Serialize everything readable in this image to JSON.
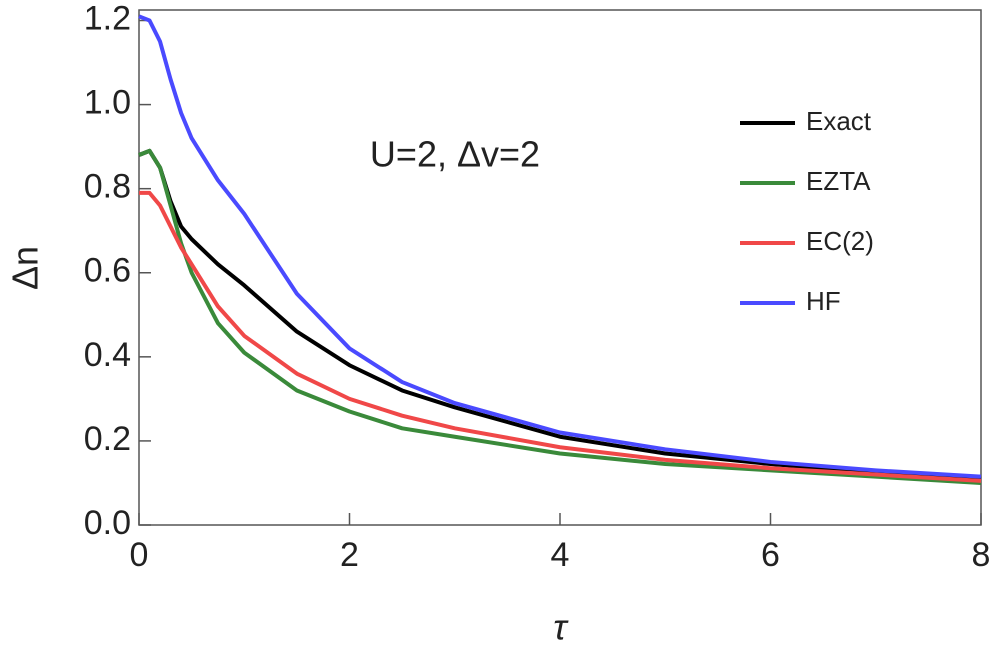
{
  "chart_data": {
    "type": "line",
    "annotation": "U=2, Δv=2",
    "x_label": "τ",
    "y_label": "Δn",
    "x": [
      0,
      0.1,
      0.2,
      0.3,
      0.4,
      0.5,
      0.75,
      1,
      1.5,
      2,
      2.5,
      3,
      4,
      5,
      6,
      7,
      8
    ],
    "series": [
      {
        "name": "Exact",
        "color": "#000000",
        "values": [
          0.88,
          0.89,
          0.85,
          0.77,
          0.71,
          0.68,
          0.62,
          0.57,
          0.46,
          0.38,
          0.32,
          0.28,
          0.21,
          0.17,
          0.145,
          0.125,
          0.11
        ]
      },
      {
        "name": "EZTA",
        "color": "#3a8a3a",
        "values": [
          0.88,
          0.89,
          0.85,
          0.76,
          0.67,
          0.6,
          0.48,
          0.41,
          0.32,
          0.27,
          0.23,
          0.21,
          0.17,
          0.145,
          0.13,
          0.115,
          0.1
        ]
      },
      {
        "name": "EC(2)",
        "color": "#f04848",
        "values": [
          0.79,
          0.79,
          0.76,
          0.71,
          0.66,
          0.62,
          0.52,
          0.45,
          0.36,
          0.3,
          0.26,
          0.23,
          0.185,
          0.155,
          0.135,
          0.12,
          0.105
        ]
      },
      {
        "name": "HF",
        "color": "#4a4aff",
        "values": [
          1.21,
          1.2,
          1.15,
          1.06,
          0.98,
          0.92,
          0.82,
          0.74,
          0.55,
          0.42,
          0.34,
          0.29,
          0.22,
          0.18,
          0.15,
          0.13,
          0.115
        ]
      }
    ],
    "xlim": [
      0,
      8
    ],
    "xticks": [
      0,
      2,
      4,
      6,
      8
    ],
    "ylim": [
      0,
      1.225
    ],
    "yticks": [
      {
        "value": 0,
        "label": "0.0"
      },
      0.2,
      0.4,
      0.6,
      0.8,
      {
        "value": 1,
        "label": "1.0"
      },
      1.2
    ],
    "legend": "upper right"
  }
}
